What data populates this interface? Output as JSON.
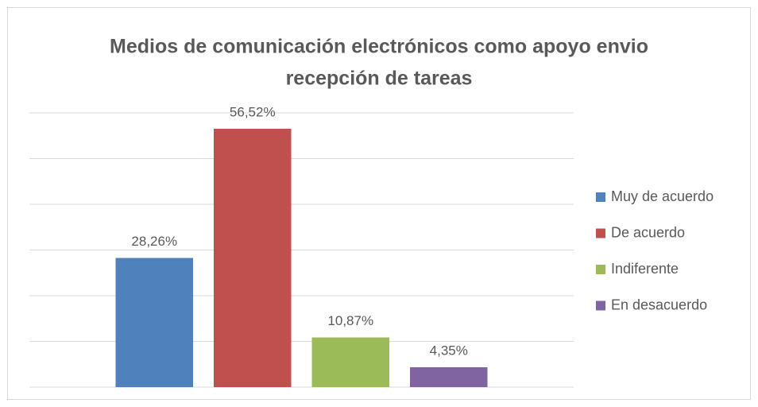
{
  "chart_data": {
    "type": "bar",
    "title": [
      "Medios de comunicación electrónicos como apoyo envio",
      "recepción de tareas"
    ],
    "series": [
      {
        "name": "Muy de acuerdo",
        "color": "#4f81bd",
        "values": [
          28.26
        ],
        "value_labels": [
          "28,26%"
        ]
      },
      {
        "name": "De acuerdo",
        "color": "#c0504d",
        "values": [
          56.52
        ],
        "value_labels": [
          "56,52%"
        ]
      },
      {
        "name": "Indiferente",
        "color": "#9bbb59",
        "values": [
          10.87
        ],
        "value_labels": [
          "10,87%"
        ]
      },
      {
        "name": "En desacuerdo",
        "color": "#8064a2",
        "values": [
          4.35
        ],
        "value_labels": [
          "4,35%"
        ]
      }
    ],
    "ylim": [
      0,
      60
    ],
    "yticks": [
      0,
      10,
      20,
      30,
      40,
      50,
      60
    ],
    "grid": true,
    "legend": "right"
  }
}
